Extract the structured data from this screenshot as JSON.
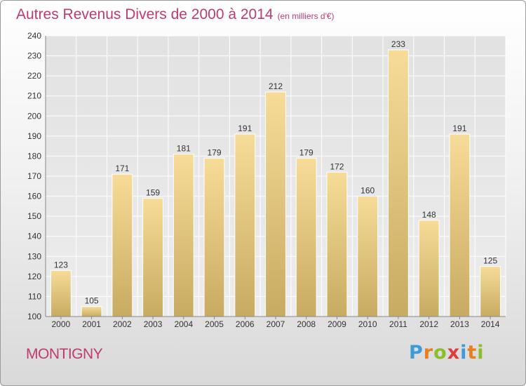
{
  "title": "Autres Revenus Divers de 2000 à 2014",
  "subtitle": "(en milliers d'€)",
  "location": "MONTIGNY",
  "logo": {
    "text": "Proxiti",
    "letters": [
      "P",
      "r",
      "o",
      "x",
      "i",
      "t",
      "i"
    ],
    "colors": [
      "#3f9ad6",
      "#e57f1f",
      "#8bbf2a",
      "#e03b3b",
      "#3f9ad6",
      "#e57f1f",
      "#8bbf2a"
    ]
  },
  "colors": {
    "title": "#c03a70",
    "bar_top": "#f6dc98",
    "bar_bottom": "#c8ab62",
    "grid": "#ffffff",
    "plot_bg": "#e6e6e6"
  },
  "chart_data": {
    "type": "bar",
    "categories": [
      "2000",
      "2001",
      "2002",
      "2003",
      "2004",
      "2005",
      "2006",
      "2007",
      "2008",
      "2009",
      "2010",
      "2011",
      "2012",
      "2013",
      "2014"
    ],
    "values": [
      123,
      105,
      171,
      159,
      181,
      179,
      191,
      212,
      179,
      172,
      160,
      233,
      148,
      191,
      125
    ],
    "ylim": [
      100,
      240
    ],
    "yticks": [
      100,
      110,
      120,
      130,
      140,
      150,
      160,
      170,
      180,
      190,
      200,
      210,
      220,
      230,
      240
    ],
    "grid": true,
    "xlabel": "",
    "ylabel": ""
  }
}
